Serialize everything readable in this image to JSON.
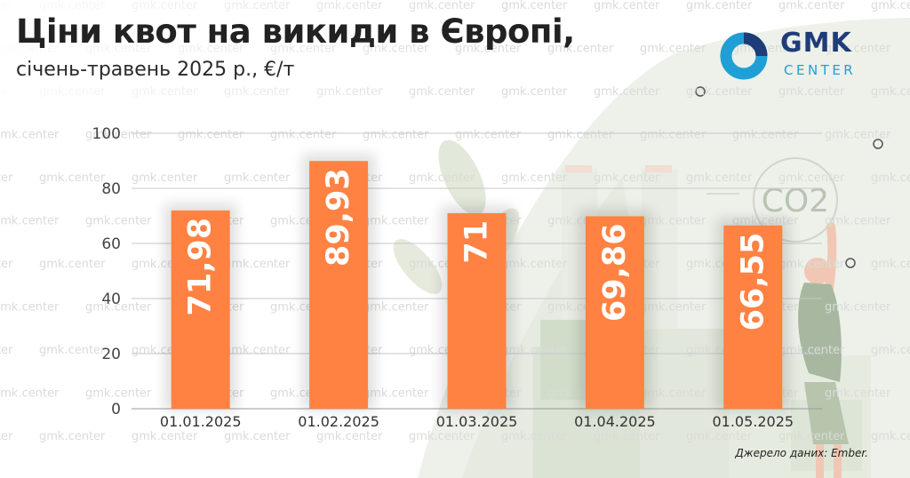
{
  "title": "Ціни квот на викиди в Європі,",
  "subtitle": "січень-травень 2025 р., €/т",
  "source": "Джерело даних: Ember.",
  "logo": {
    "name": "GMK",
    "subname": "CENTER"
  },
  "watermark_text": "gmk.center",
  "illustration": {
    "co2_label": "CO2"
  },
  "colors": {
    "bar": "#ff8243",
    "title": "#222222",
    "logo_dark": "#1d3c78",
    "logo_light": "#1f9fd5",
    "grid": "#c8c8c8"
  },
  "chart_data": {
    "type": "bar",
    "categories": [
      "01.01.2025",
      "01.02.2025",
      "01.03.2025",
      "01.04.2025",
      "01.05.2025"
    ],
    "values": [
      71.98,
      89.93,
      71,
      69.86,
      66.55
    ],
    "value_labels": [
      "71,98",
      "89,93",
      "71",
      "69,86",
      "66,55"
    ],
    "ylim": [
      0,
      100
    ],
    "yticks": [
      0,
      20,
      40,
      60,
      80,
      100
    ],
    "grid": true,
    "xlabel": "",
    "ylabel": ""
  }
}
